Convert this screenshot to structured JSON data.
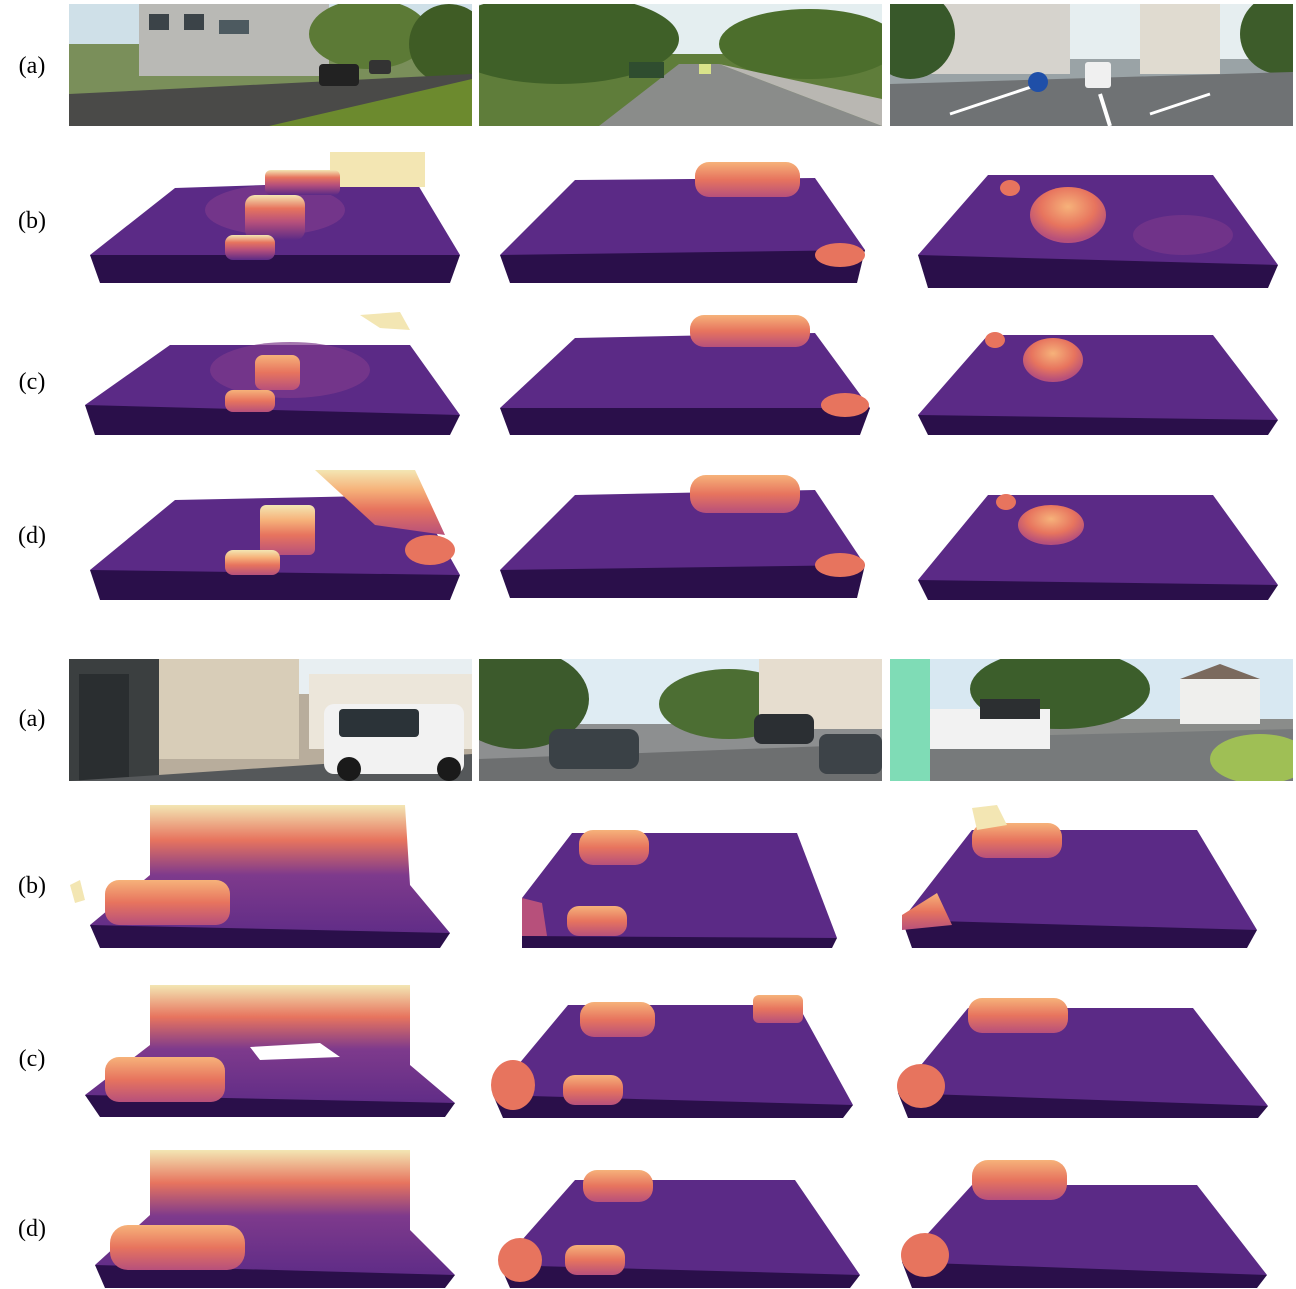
{
  "groups": [
    {
      "rows": [
        {
          "label": "(a)",
          "kind": "input-image"
        },
        {
          "label": "(b)",
          "kind": "height-map"
        },
        {
          "label": "(c)",
          "kind": "height-map"
        },
        {
          "label": "(d)",
          "kind": "height-map"
        }
      ],
      "columns": 3
    },
    {
      "rows": [
        {
          "label": "(a)",
          "kind": "input-image"
        },
        {
          "label": "(b)",
          "kind": "height-map"
        },
        {
          "label": "(c)",
          "kind": "height-map"
        },
        {
          "label": "(d)",
          "kind": "height-map"
        }
      ],
      "columns": 3
    }
  ],
  "colormap": [
    "#2a0f4a",
    "#5b2a86",
    "#7e3a8c",
    "#b7507b",
    "#e7745e",
    "#f6b27a",
    "#f3e6b3"
  ]
}
